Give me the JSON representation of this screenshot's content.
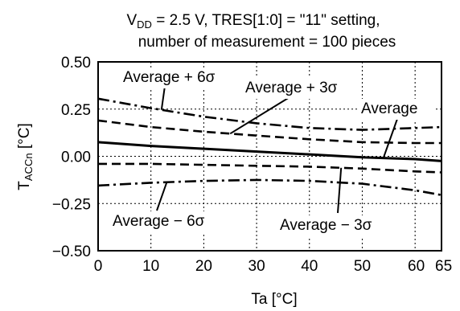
{
  "chart_data": {
    "type": "line",
    "title_line1_prefix": "V",
    "title_line1_sub": "DD",
    "title_line1_rest": " = 2.5 V, TRES[1:0] = \"11\" setting,",
    "title_line2": "number of measurement = 100 pieces",
    "ylabel_main": "T",
    "ylabel_sub": "ACCn",
    "ylabel_unit": " [°C]",
    "xlabel": "Ta [°C]",
    "xlim": [
      0,
      65
    ],
    "ylim": [
      -0.5,
      0.5
    ],
    "x_ticks": [
      0,
      10,
      20,
      30,
      40,
      50,
      60,
      65
    ],
    "x_tick_labels": [
      "0",
      "10",
      "20",
      "30",
      "40",
      "50",
      "60",
      "65"
    ],
    "y_ticks": [
      -0.5,
      -0.25,
      0,
      0.25,
      0.5
    ],
    "y_tick_labels": [
      "−0.50",
      "−0.25",
      "0.00",
      "0.25",
      "0.50"
    ],
    "grid": true,
    "x": [
      0,
      10,
      20,
      30,
      40,
      50,
      60,
      65
    ],
    "series": [
      {
        "name": "Average + 6σ",
        "style": "dashdot",
        "values": [
          0.305,
          0.255,
          0.21,
          0.175,
          0.15,
          0.14,
          0.15,
          0.155
        ]
      },
      {
        "name": "Average + 3σ",
        "style": "dashed",
        "values": [
          0.19,
          0.155,
          0.13,
          0.11,
          0.09,
          0.075,
          0.07,
          0.07
        ]
      },
      {
        "name": "Average",
        "style": "solid",
        "values": [
          0.075,
          0.055,
          0.04,
          0.025,
          0.01,
          -0.005,
          -0.015,
          -0.025
        ]
      },
      {
        "name": "Average − 3σ",
        "style": "dashed",
        "values": [
          -0.04,
          -0.04,
          -0.045,
          -0.05,
          -0.055,
          -0.065,
          -0.08,
          -0.085
        ]
      },
      {
        "name": "Average − 6σ",
        "style": "dashdot",
        "values": [
          -0.155,
          -0.14,
          -0.13,
          -0.125,
          -0.13,
          -0.145,
          -0.18,
          -0.205
        ]
      }
    ],
    "annotations": [
      {
        "text": "Average + 6σ",
        "series": 0
      },
      {
        "text": "Average + 3σ",
        "series": 1
      },
      {
        "text": "Average",
        "series": 2
      },
      {
        "text": "Average − 6σ",
        "series": 4
      },
      {
        "text": "Average − 3σ",
        "series": 3
      }
    ]
  }
}
